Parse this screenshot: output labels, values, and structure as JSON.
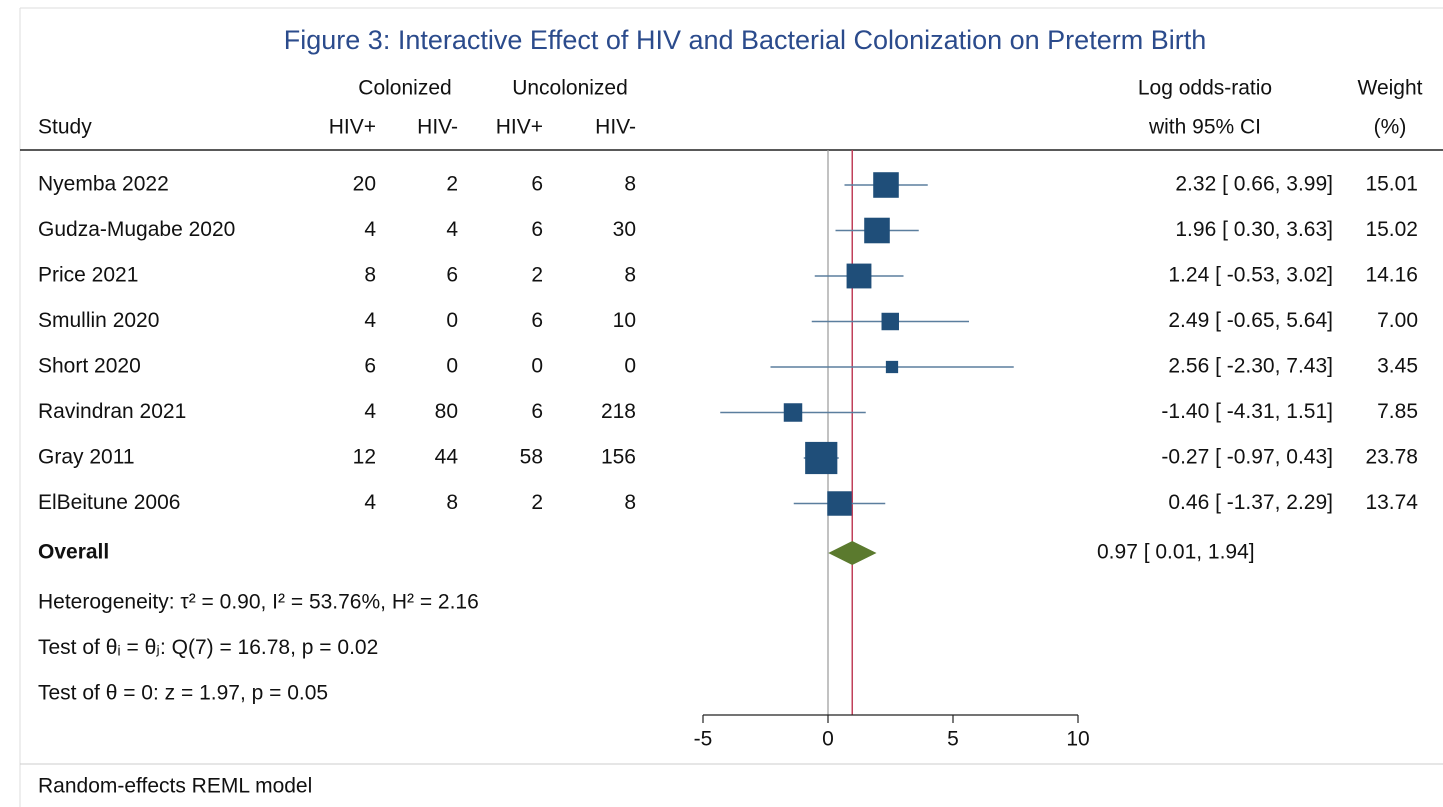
{
  "chart_data": {
    "type": "forest",
    "title": "Figure 3: Interactive Effect of HIV and Bacterial Colonization on Preterm Birth",
    "study_header": "Study",
    "column_groups": [
      {
        "name": "Colonized",
        "columns": [
          "HIV+",
          "HIV-"
        ]
      },
      {
        "name": "Uncolonized",
        "columns": [
          "HIV+",
          "HIV-"
        ]
      }
    ],
    "effect_header": [
      "Log odds-ratio",
      "with 95% CI"
    ],
    "weight_header": [
      "Weight",
      "(%)"
    ],
    "studies": [
      {
        "name": "Nyemba 2022",
        "counts": [
          20,
          2,
          6,
          8
        ],
        "estimate": 2.32,
        "ci": [
          0.66,
          3.99
        ],
        "label": "2.32 [ 0.66, 3.99]",
        "weight": 15.01,
        "weight_label": "15.01"
      },
      {
        "name": "Gudza-Mugabe 2020",
        "counts": [
          4,
          4,
          6,
          30
        ],
        "estimate": 1.96,
        "ci": [
          0.3,
          3.63
        ],
        "label": "1.96 [ 0.30, 3.63]",
        "weight": 15.02,
        "weight_label": "15.02"
      },
      {
        "name": "Price 2021",
        "counts": [
          8,
          6,
          2,
          8
        ],
        "estimate": 1.24,
        "ci": [
          -0.53,
          3.02
        ],
        "label": "1.24 [ -0.53, 3.02]",
        "weight": 14.16,
        "weight_label": "14.16"
      },
      {
        "name": "Smullin 2020",
        "counts": [
          4,
          0,
          6,
          10
        ],
        "estimate": 2.49,
        "ci": [
          -0.65,
          5.64
        ],
        "label": "2.49 [ -0.65, 5.64]",
        "weight": 7.0,
        "weight_label": "7.00"
      },
      {
        "name": "Short 2020",
        "counts": [
          6,
          0,
          0,
          0
        ],
        "estimate": 2.56,
        "ci": [
          -2.3,
          7.43
        ],
        "label": "2.56 [ -2.30, 7.43]",
        "weight": 3.45,
        "weight_label": "3.45"
      },
      {
        "name": "Ravindran 2021",
        "counts": [
          4,
          80,
          6,
          218
        ],
        "estimate": -1.4,
        "ci": [
          -4.31,
          1.51
        ],
        "label": "-1.40 [ -4.31, 1.51]",
        "weight": 7.85,
        "weight_label": "7.85"
      },
      {
        "name": "Gray 2011",
        "counts": [
          12,
          44,
          58,
          156
        ],
        "estimate": -0.27,
        "ci": [
          -0.97,
          0.43
        ],
        "label": "-0.27 [ -0.97, 0.43]",
        "weight": 23.78,
        "weight_label": "23.78"
      },
      {
        "name": "ElBeitune 2006",
        "counts": [
          4,
          8,
          2,
          8
        ],
        "estimate": 0.46,
        "ci": [
          -1.37,
          2.29
        ],
        "label": "0.46 [ -1.37, 2.29]",
        "weight": 13.74,
        "weight_label": "13.74"
      }
    ],
    "overall": {
      "name": "Overall",
      "estimate": 0.97,
      "ci": [
        0.01,
        1.94
      ],
      "label": "0.97 [ 0.01, 1.94]"
    },
    "notes": [
      "Heterogeneity: τ² = 0.90, I² = 53.76%, H² = 2.16",
      "Test of θᵢ = θⱼ: Q(7) = 16.78, p = 0.02",
      "Test of θ = 0: z = 1.97, p = 0.05"
    ],
    "footer": "Random-effects REML model",
    "xlim": [
      -5,
      10
    ],
    "xticks": [
      -5,
      0,
      5,
      10
    ],
    "reference_line": 0,
    "square_color": "#1f4e79",
    "ci_color": "#5b7e9e",
    "diamond_color": "#5b7a2e",
    "overall_line_color": "#c0405a"
  }
}
